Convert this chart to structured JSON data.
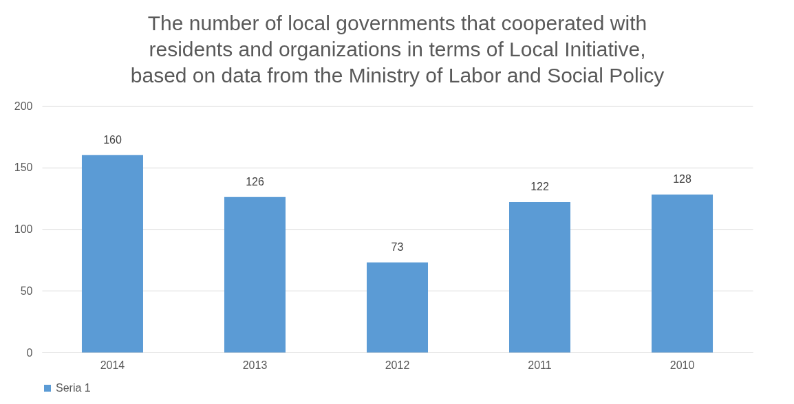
{
  "chart_data": {
    "type": "bar",
    "title": [
      "The number of local governments that cooperated with",
      "residents and organizations in terms of Local Initiative,",
      "based on data from the Ministry of Labor and Social Policy"
    ],
    "categories": [
      "2014",
      "2013",
      "2012",
      "2011",
      "2010"
    ],
    "series": [
      {
        "name": "Seria 1",
        "color": "#5b9bd5",
        "values": [
          160,
          126,
          73,
          122,
          128
        ]
      }
    ],
    "ylim": [
      0,
      200
    ],
    "yticks": [
      0,
      50,
      100,
      150,
      200
    ],
    "grid": "y",
    "legend": "bottom",
    "data_labels": true
  }
}
